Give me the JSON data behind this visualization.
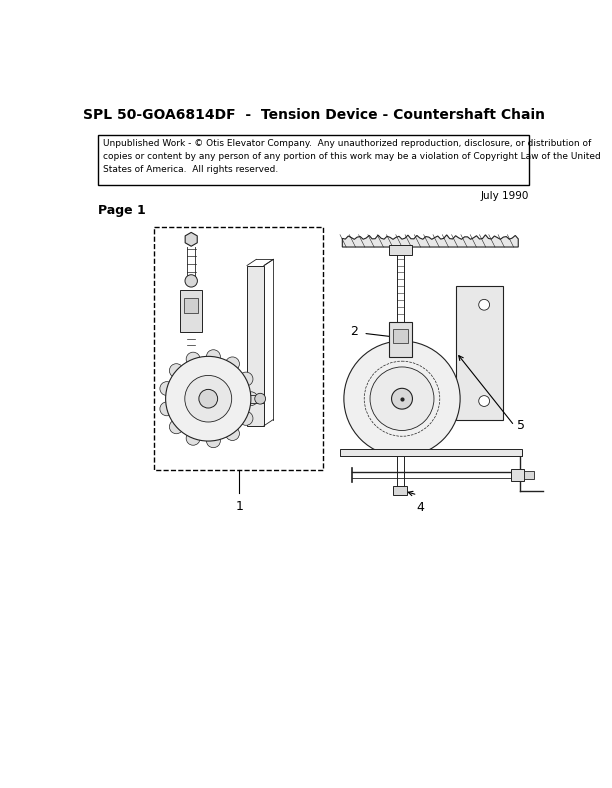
{
  "title": "SPL 50-GOA6814DF  -  Tension Device - Countershaft Chain",
  "copyright_text": "Unpublished Work - © Otis Elevator Company.  Any unauthorized reproduction, disclosure, or distribution of\ncopies or content by any person of any portion of this work may be a violation of Copyright Law of the United\nStates of America.  All rights reserved.",
  "date_text": "July 1990",
  "page_text": "Page 1",
  "bg_color": "#ffffff",
  "fig_width": 6.12,
  "fig_height": 7.88,
  "title_fontsize": 10,
  "body_fontsize": 6.5,
  "page_fontsize": 9
}
